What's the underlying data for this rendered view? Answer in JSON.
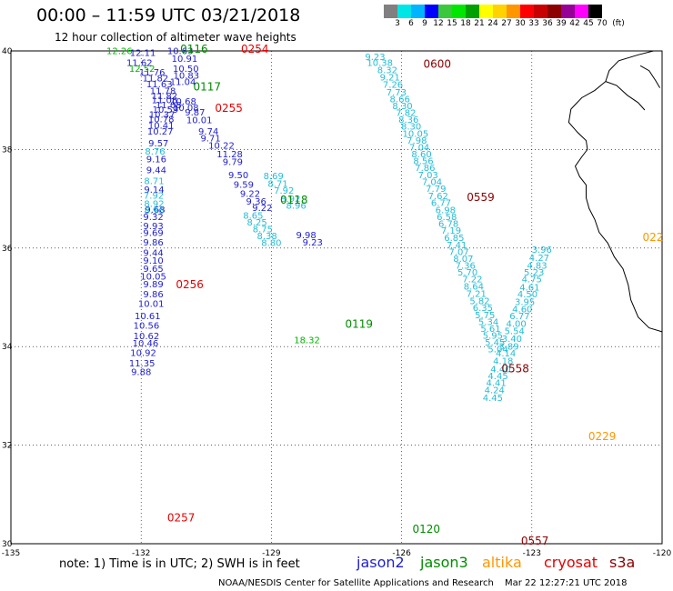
{
  "header": {
    "title": "00:00 – 11:59 UTC 03/21/2018",
    "subtitle": "12 hour collection of altimeter wave heights"
  },
  "colorbar": {
    "colors": [
      "#808080",
      "#00e6e6",
      "#00b4ff",
      "#0000ff",
      "#3cc83c",
      "#00e600",
      "#00a000",
      "#ffff00",
      "#ffd200",
      "#ff9600",
      "#ff0000",
      "#c80000",
      "#8c0000",
      "#960096",
      "#ff00ff",
      "#000000"
    ],
    "labels": [
      "3",
      "6",
      "9",
      "12",
      "15",
      "18",
      "21",
      "24",
      "27",
      "30",
      "33",
      "36",
      "39",
      "42",
      "45",
      "70"
    ],
    "unit": "(ft)"
  },
  "axes": {
    "lon_labels": [
      "-135",
      "-132",
      "-129",
      "-126",
      "-123",
      "-120"
    ],
    "lat_labels": [
      "40",
      "38",
      "36",
      "34",
      "32",
      "30"
    ]
  },
  "chart_data": {
    "type": "scatter",
    "xlim": [
      -135,
      -120
    ],
    "ylim": [
      30,
      40
    ],
    "grid": true,
    "series": [
      {
        "name": "jason2",
        "color": "#1e1ecf",
        "points": [
          [
            -131.96,
            39.9,
            12.11
          ],
          [
            -132.04,
            39.7,
            11.62
          ],
          [
            -131.75,
            39.5,
            11.76
          ],
          [
            -131.67,
            39.38,
            11.82
          ],
          [
            -131.58,
            39.26,
            11.63
          ],
          [
            -131.5,
            39.12,
            11.78
          ],
          [
            -131.46,
            39.02,
            11.82
          ],
          [
            -131.46,
            38.94,
            11.08
          ],
          [
            -131.37,
            38.84,
            11.08
          ],
          [
            -131.44,
            38.75,
            10.59
          ],
          [
            -131.52,
            38.64,
            10.37
          ],
          [
            -131.54,
            38.55,
            10.78
          ],
          [
            -131.54,
            38.42,
            10.41
          ],
          [
            -131.56,
            38.3,
            10.27
          ],
          [
            -131.6,
            38.06,
            9.57
          ],
          [
            -131.65,
            37.74,
            9.16
          ],
          [
            -131.65,
            37.52,
            9.44
          ],
          [
            -131.7,
            37.12,
            9.14
          ],
          [
            -131.68,
            36.72,
            9.68
          ],
          [
            -131.72,
            36.57,
            9.32
          ],
          [
            -131.72,
            36.38,
            9.93
          ],
          [
            -131.72,
            36.25,
            9.69
          ],
          [
            -131.72,
            36.05,
            9.86
          ],
          [
            -131.72,
            35.84,
            9.44
          ],
          [
            -131.72,
            35.68,
            9.1
          ],
          [
            -131.72,
            35.52,
            9.65
          ],
          [
            -131.72,
            35.36,
            10.05
          ],
          [
            -131.72,
            35.2,
            9.89
          ],
          [
            -131.72,
            35.0,
            9.86
          ],
          [
            -131.77,
            34.81,
            10.01
          ],
          [
            -131.85,
            34.56,
            10.61
          ],
          [
            -131.88,
            34.36,
            10.56
          ],
          [
            -131.88,
            34.15,
            10.62
          ],
          [
            -131.9,
            34.0,
            10.46
          ],
          [
            -131.95,
            33.81,
            10.92
          ],
          [
            -131.98,
            33.6,
            11.35
          ],
          [
            -132.0,
            33.42,
            9.88
          ],
          [
            -131.1,
            39.94,
            10.63
          ],
          [
            -131.0,
            39.78,
            10.91
          ],
          [
            -130.97,
            39.58,
            10.5
          ],
          [
            -130.96,
            39.44,
            10.83
          ],
          [
            -131.04,
            39.31,
            11.04
          ],
          [
            -131.03,
            38.91,
            10.68
          ],
          [
            -130.97,
            38.78,
            10.08
          ],
          [
            -130.76,
            38.69,
            9.87
          ],
          [
            -130.66,
            38.53,
            10.01
          ],
          [
            -130.45,
            38.3,
            9.74
          ],
          [
            -130.4,
            38.16,
            9.71
          ],
          [
            -130.15,
            38.02,
            10.22
          ],
          [
            -129.96,
            37.84,
            11.28
          ],
          [
            -129.89,
            37.68,
            9.79
          ],
          [
            -129.76,
            37.42,
            9.5
          ],
          [
            -129.64,
            37.22,
            9.59
          ],
          [
            -129.49,
            37.04,
            9.22
          ],
          [
            -129.35,
            36.88,
            9.36
          ],
          [
            -129.21,
            36.75,
            9.22
          ],
          [
            -128.2,
            36.2,
            9.98
          ],
          [
            -128.05,
            36.05,
            9.23
          ]
        ]
      },
      {
        "name": "jason3",
        "color": "#00b400",
        "points": [
          [
            -132.5,
            39.94,
            12.26
          ],
          [
            -131.98,
            39.58,
            12.52
          ],
          [
            -128.18,
            34.07,
            18.32
          ]
        ]
      },
      {
        "name": "altika",
        "color": "#24bcd6",
        "points": [
          [
            -126.61,
            39.82,
            9.23
          ],
          [
            -126.5,
            39.7,
            10.38
          ],
          [
            -126.33,
            39.55,
            8.32
          ],
          [
            -126.27,
            39.4,
            9.21
          ],
          [
            -126.2,
            39.25,
            7.26
          ],
          [
            -126.12,
            39.1,
            7.73
          ],
          [
            -126.04,
            38.96,
            8.66
          ],
          [
            -125.98,
            38.82,
            8.3
          ],
          [
            -125.9,
            38.68,
            7.82
          ],
          [
            -125.84,
            38.54,
            8.36
          ],
          [
            -125.78,
            38.4,
            8.3
          ],
          [
            -125.68,
            38.26,
            10.05
          ],
          [
            -125.65,
            38.12,
            7.98
          ],
          [
            -125.59,
            37.98,
            7.04
          ],
          [
            -125.54,
            37.84,
            8.6
          ],
          [
            -125.5,
            37.7,
            8.56
          ],
          [
            -125.46,
            37.56,
            7.86
          ],
          [
            -125.39,
            37.42,
            7.03
          ],
          [
            -125.3,
            37.28,
            7.04
          ],
          [
            -125.21,
            37.14,
            7.79
          ],
          [
            -125.16,
            36.99,
            7.62
          ],
          [
            -125.09,
            36.85,
            6.77
          ],
          [
            -124.99,
            36.71,
            6.98
          ],
          [
            -124.96,
            36.57,
            6.58
          ],
          [
            -124.92,
            36.43,
            6.78
          ],
          [
            -124.86,
            36.29,
            7.19
          ],
          [
            -124.79,
            36.14,
            6.85
          ],
          [
            -124.73,
            36.0,
            7.41
          ],
          [
            -124.68,
            35.86,
            7.07
          ],
          [
            -124.58,
            35.72,
            8.07
          ],
          [
            -124.53,
            35.58,
            7.36
          ],
          [
            -124.48,
            35.44,
            5.7
          ],
          [
            -124.37,
            35.3,
            7.22
          ],
          [
            -124.34,
            35.16,
            8.64
          ],
          [
            -124.28,
            35.01,
            7.21
          ],
          [
            -124.2,
            34.86,
            5.82
          ],
          [
            -124.13,
            34.72,
            6.35
          ],
          [
            -124.08,
            34.58,
            5.75
          ],
          [
            -124.0,
            34.44,
            5.34
          ],
          [
            -123.95,
            34.3,
            5.61
          ],
          [
            -123.9,
            34.16,
            5.95
          ],
          [
            -123.85,
            34.02,
            5.45
          ],
          [
            -123.78,
            33.88,
            5.04
          ],
          [
            -128.95,
            37.4,
            8.69
          ],
          [
            -128.85,
            37.24,
            8.71
          ],
          [
            -128.71,
            37.1,
            7.92
          ],
          [
            -128.56,
            36.94,
            8.92
          ],
          [
            -128.43,
            36.8,
            8.96
          ],
          [
            -129.42,
            36.6,
            8.65
          ],
          [
            -129.33,
            36.46,
            8.25
          ],
          [
            -129.2,
            36.32,
            8.75
          ],
          [
            -129.1,
            36.18,
            8.38
          ],
          [
            -129.0,
            36.04,
            8.8
          ],
          [
            -131.68,
            37.9,
            8.76
          ],
          [
            -131.7,
            37.3,
            8.71
          ],
          [
            -131.71,
            37.0,
            7.92
          ],
          [
            -131.7,
            36.84,
            8.92
          ],
          [
            -131.7,
            36.7,
            8.96
          ],
          [
            -122.77,
            35.9,
            3.96
          ],
          [
            -122.83,
            35.74,
            4.27
          ],
          [
            -122.88,
            35.58,
            4.83
          ],
          [
            -122.95,
            35.44,
            5.23
          ],
          [
            -123.0,
            35.3,
            4.75
          ],
          [
            -123.05,
            35.14,
            4.61
          ],
          [
            -123.1,
            35.0,
            4.5
          ],
          [
            -123.16,
            34.84,
            3.95
          ],
          [
            -123.22,
            34.7,
            4.6
          ],
          [
            -123.28,
            34.56,
            6.77
          ],
          [
            -123.36,
            34.4,
            4.0
          ],
          [
            -123.4,
            34.25,
            5.54
          ],
          [
            -123.46,
            34.1,
            3.4
          ],
          [
            -123.53,
            33.94,
            3.89
          ],
          [
            -123.6,
            33.8,
            4.14
          ],
          [
            -123.66,
            33.64,
            4.18
          ],
          [
            -123.72,
            33.48,
            4.4
          ],
          [
            -123.78,
            33.34,
            4.45
          ],
          [
            -123.82,
            33.2,
            4.41
          ],
          [
            -123.86,
            33.05,
            4.24
          ],
          [
            -123.9,
            32.9,
            4.45
          ]
        ]
      },
      {
        "name": "cryosat",
        "color": "#e60000",
        "points": []
      },
      {
        "name": "s3a",
        "color": "#8b0000",
        "points": []
      }
    ]
  },
  "pass_labels": [
    {
      "text": "0116",
      "color": "#008c00",
      "lon": -131.1,
      "lat": 39.96
    },
    {
      "text": "0254",
      "color": "#e60000",
      "lon": -129.7,
      "lat": 39.96
    },
    {
      "text": "0600",
      "color": "#8b0000",
      "lon": -125.5,
      "lat": 39.66
    },
    {
      "text": "0117",
      "color": "#008c00",
      "lon": -130.8,
      "lat": 39.2
    },
    {
      "text": "0255",
      "color": "#e60000",
      "lon": -130.3,
      "lat": 38.76
    },
    {
      "text": "0118",
      "color": "#008c00",
      "lon": -128.8,
      "lat": 36.9
    },
    {
      "text": "0559",
      "color": "#8b0000",
      "lon": -124.5,
      "lat": 36.96
    },
    {
      "text": "0256",
      "color": "#e60000",
      "lon": -131.2,
      "lat": 35.18
    },
    {
      "text": "0119",
      "color": "#008c00",
      "lon": -127.3,
      "lat": 34.38
    },
    {
      "text": "0558",
      "color": "#8b0000",
      "lon": -123.7,
      "lat": 33.48
    },
    {
      "text": "0229",
      "color": "#ff9600",
      "lon": -121.7,
      "lat": 32.1
    },
    {
      "text": "0257",
      "color": "#e60000",
      "lon": -131.4,
      "lat": 30.45
    },
    {
      "text": "0120",
      "color": "#008c00",
      "lon": -125.75,
      "lat": 30.22
    },
    {
      "text": "0557",
      "color": "#8b0000",
      "lon": -123.25,
      "lat": 29.98
    },
    {
      "text": "022",
      "color": "#ff9600",
      "lon": -120.45,
      "lat": 36.14
    }
  ],
  "footer": {
    "note": "note:  1) Time is in UTC;  2) SWH is in feet",
    "satellites": [
      {
        "name": "jason2",
        "color": "#1e1ecf"
      },
      {
        "name": "jason3",
        "color": "#008c00"
      },
      {
        "name": "altika",
        "color": "#ff9600"
      },
      {
        "name": "cryosat",
        "color": "#e60000"
      },
      {
        "name": "s3a",
        "color": "#8b0000"
      }
    ],
    "credit": "NOAA/NESDIS Center for Satellite Applications and Research",
    "timestamp": "Mar 22 12:27:21 UTC 2018"
  }
}
